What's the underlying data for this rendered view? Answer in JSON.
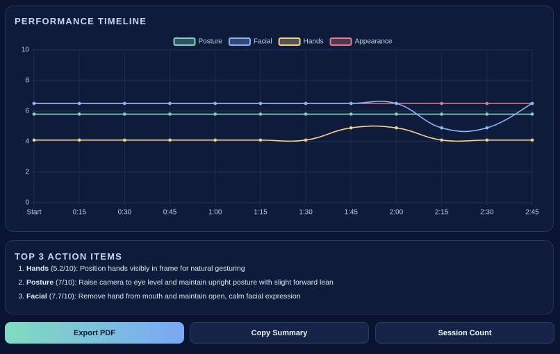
{
  "chart_data": {
    "type": "line",
    "title": "PERFORMANCE TIMELINE",
    "categories": [
      "Start",
      "0:15",
      "0:30",
      "0:45",
      "1:00",
      "1:15",
      "1:30",
      "1:45",
      "2:00",
      "2:15",
      "2:30",
      "2:45"
    ],
    "series": [
      {
        "name": "Posture",
        "color": "#7fd6c2",
        "values": [
          5.8,
          5.8,
          5.8,
          5.8,
          5.8,
          5.8,
          5.8,
          5.8,
          5.8,
          5.8,
          5.8,
          5.8
        ]
      },
      {
        "name": "Facial",
        "color": "#8ab4f8",
        "values": [
          6.5,
          6.5,
          6.5,
          6.5,
          6.5,
          6.5,
          6.5,
          6.5,
          6.5,
          4.9,
          4.9,
          6.5
        ]
      },
      {
        "name": "Hands",
        "color": "#f3cf8c",
        "values": [
          4.1,
          4.1,
          4.1,
          4.1,
          4.1,
          4.1,
          4.1,
          4.9,
          4.9,
          4.1,
          4.1,
          4.1
        ]
      },
      {
        "name": "Appearance",
        "color": "#e67b93",
        "values": [
          6.5,
          6.5,
          6.5,
          6.5,
          6.5,
          6.5,
          6.5,
          6.5,
          6.5,
          6.5,
          6.5,
          6.5
        ]
      }
    ],
    "ylim": [
      0,
      10
    ],
    "yticks": [
      0,
      2,
      4,
      6,
      8,
      10
    ],
    "grid": true,
    "legend": "top"
  },
  "action_items": {
    "title": "TOP 3 ACTION ITEMS",
    "items": [
      {
        "name": "Hands",
        "detail": "(5.2/10): Position hands visibly in frame for natural gesturing"
      },
      {
        "name": "Posture",
        "detail": "(7/10): Raise camera to eye level and maintain upright posture with slight forward lean"
      },
      {
        "name": "Facial",
        "detail": "(7.7/10): Remove hand from mouth and maintain open, calm facial expression"
      }
    ]
  },
  "buttons": [
    "Export PDF",
    "Copy Summary",
    "Session Count"
  ]
}
